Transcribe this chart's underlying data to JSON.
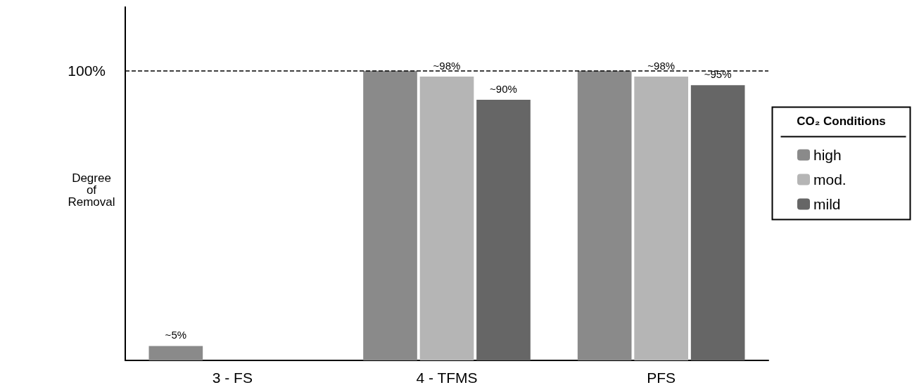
{
  "chart_data": {
    "type": "bar",
    "ylabel": "Degree of Removal",
    "legend_title": "CO₂ Conditions",
    "legend": "right",
    "categories": [
      "3 - FS",
      "4 - TFMS",
      "PFS"
    ],
    "series": [
      {
        "name": "high",
        "color": "#8a8a8a",
        "values": [
          5,
          100,
          100
        ],
        "value_labels": [
          "~5%",
          null,
          null
        ]
      },
      {
        "name": "mod.",
        "color": "#b5b5b5",
        "values": [
          null,
          98,
          98
        ],
        "value_labels": [
          null,
          "~98%",
          "~98%"
        ]
      },
      {
        "name": "mild",
        "color": "#666666",
        "values": [
          null,
          90,
          95
        ],
        "value_labels": [
          null,
          "~90%",
          "~95%"
        ]
      }
    ],
    "ylim": [
      0,
      122
    ],
    "yticks": [
      {
        "value": 100,
        "label": "100%"
      }
    ],
    "ref_lines": [
      {
        "axis": "y",
        "value": 100,
        "line_style": "dashed",
        "color": "#000000"
      }
    ],
    "grid": false
  }
}
